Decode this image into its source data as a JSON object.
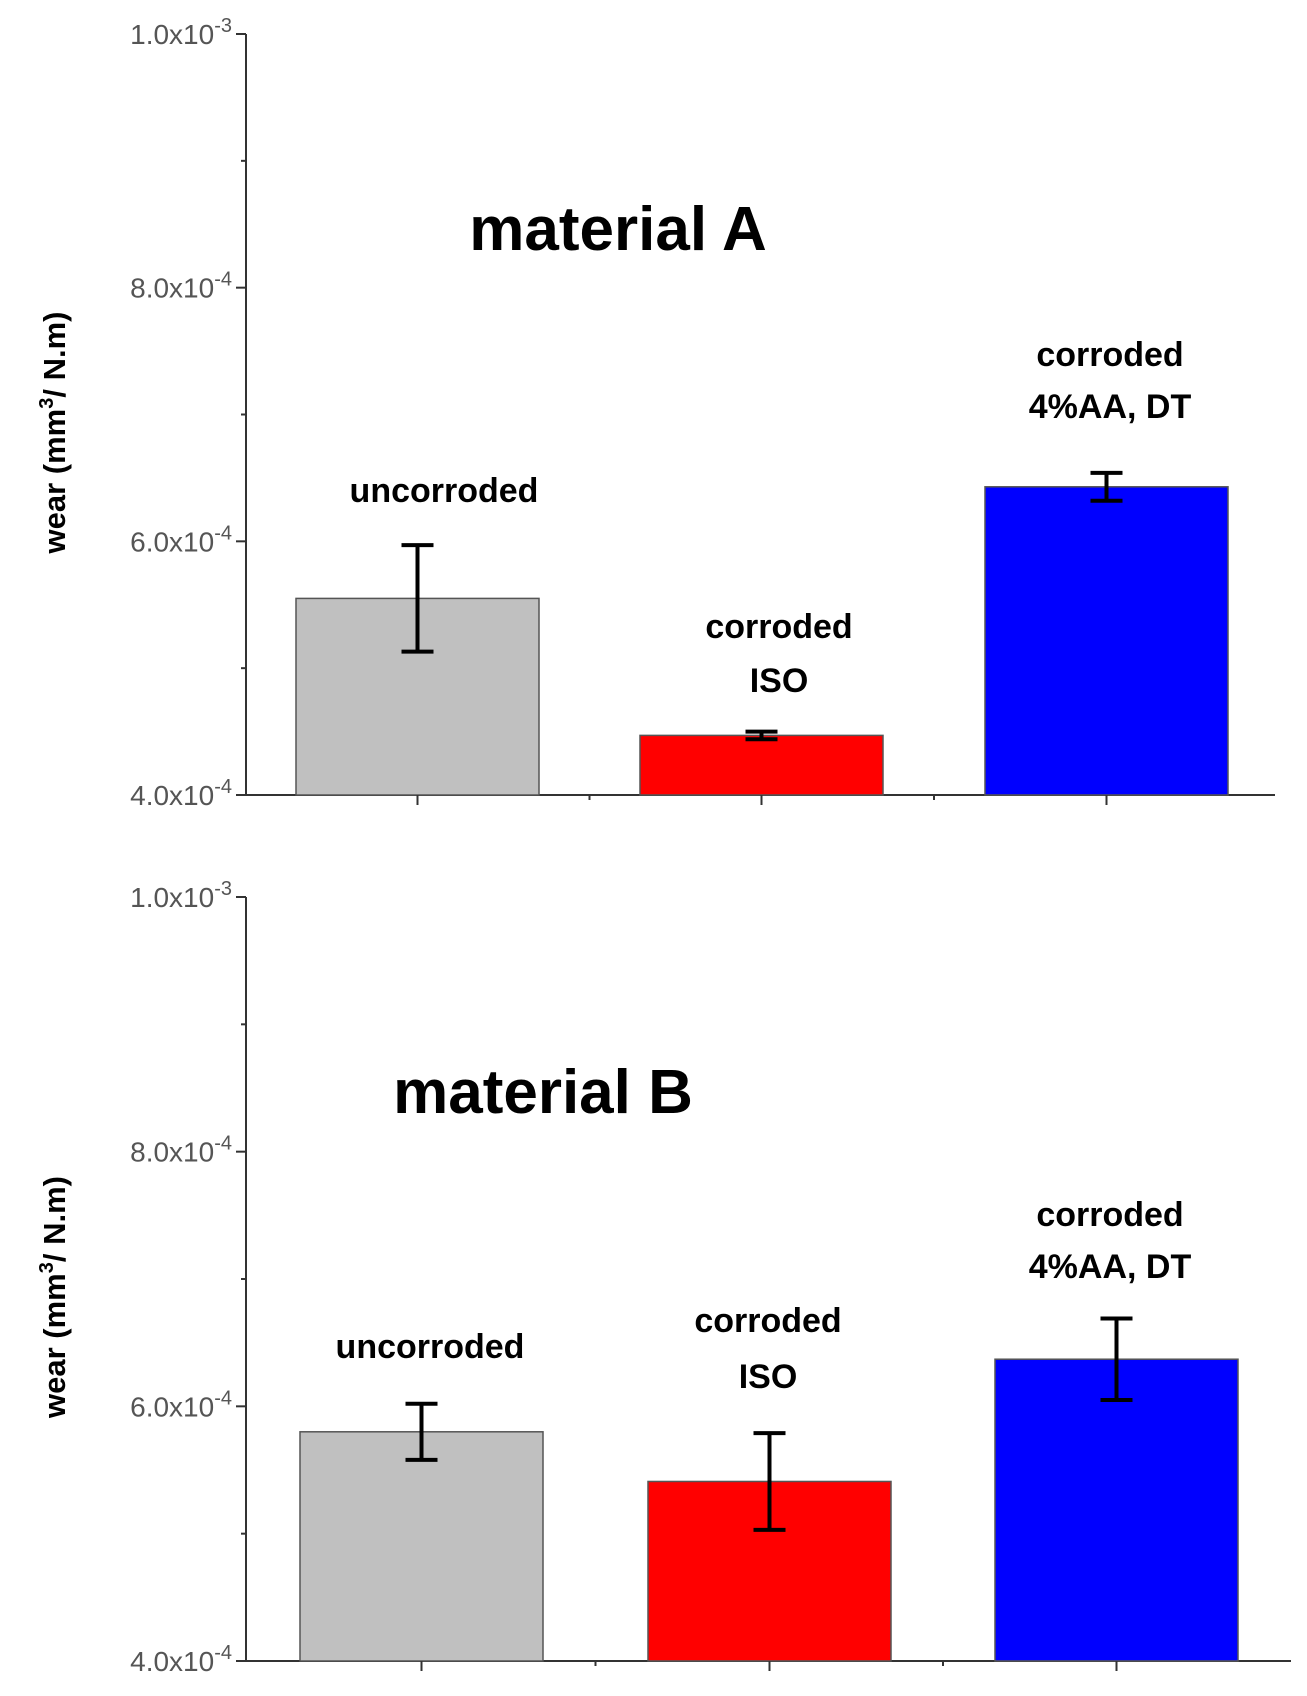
{
  "chart_data": [
    {
      "type": "bar",
      "title": "material A",
      "ylabel": "wear (mm³/ N.m)",
      "xlabel": "",
      "ylim": [
        0.0004,
        0.001
      ],
      "yticks": [
        {
          "value": 0.0004,
          "label": "4.0x10-4",
          "mant": "4.0x10",
          "exp": "-4"
        },
        {
          "value": 0.0006,
          "label": "6.0x10-4",
          "mant": "6.0x10",
          "exp": "-4"
        },
        {
          "value": 0.0008,
          "label": "8.0x10-4",
          "mant": "8.0x10",
          "exp": "-4"
        },
        {
          "value": 0.001,
          "label": "1.0x10-3",
          "mant": "1.0x10",
          "exp": "-3"
        }
      ],
      "minor_yticks": [
        0.0005,
        0.0007,
        0.0009
      ],
      "categories": [
        "uncorroded",
        "corroded ISO",
        "corroded 4%AA, DT"
      ],
      "bar_labels": [
        [
          "uncorroded"
        ],
        [
          "corroded",
          "ISO"
        ],
        [
          "corroded",
          "4%AA, DT"
        ]
      ],
      "values": [
        0.000555,
        0.000447,
        0.000643
      ],
      "errors": [
        4.2e-05,
        3e-06,
        1.1e-05
      ],
      "colors": [
        "#c0c0c0",
        "#ff0000",
        "#0000ff"
      ]
    },
    {
      "type": "bar",
      "title": "material B",
      "ylabel": "wear (mm³/ N.m)",
      "xlabel": "",
      "ylim": [
        0.0004,
        0.001
      ],
      "yticks": [
        {
          "value": 0.0004,
          "label": "4.0x10-4",
          "mant": "4.0x10",
          "exp": "-4"
        },
        {
          "value": 0.0006,
          "label": "6.0x10-4",
          "mant": "6.0x10",
          "exp": "-4"
        },
        {
          "value": 0.0008,
          "label": "8.0x10-4",
          "mant": "8.0x10",
          "exp": "-4"
        },
        {
          "value": 0.001,
          "label": "1.0x10-3",
          "mant": "1.0x10",
          "exp": "-3"
        }
      ],
      "minor_yticks": [
        0.0005,
        0.0007,
        0.0009
      ],
      "categories": [
        "uncorroded",
        "corroded ISO",
        "corroded 4%AA, DT"
      ],
      "bar_labels": [
        [
          "uncorroded"
        ],
        [
          "corroded",
          "ISO"
        ],
        [
          "corroded",
          "4%AA, DT"
        ]
      ],
      "values": [
        0.00058,
        0.000541,
        0.000637
      ],
      "errors": [
        2.2e-05,
        3.8e-05,
        3.2e-05
      ],
      "colors": [
        "#c0c0c0",
        "#ff0000",
        "#0000ff"
      ]
    }
  ]
}
